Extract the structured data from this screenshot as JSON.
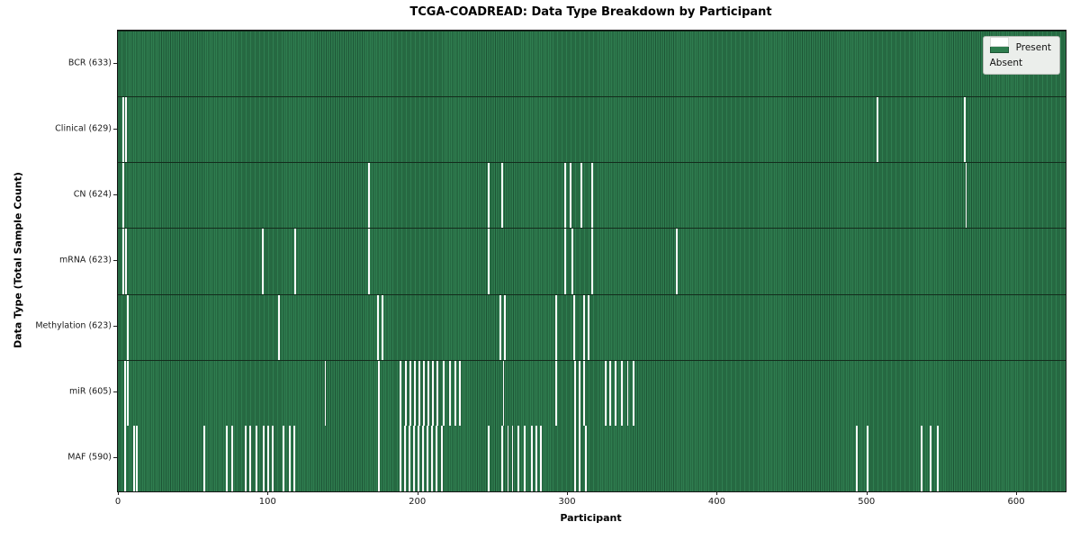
{
  "chart_data": {
    "type": "heatmap",
    "title": "TCGA-COADREAD: Data Type Breakdown by Participant",
    "xlabel": "Participant",
    "ylabel": "Data Type (Total Sample Count)",
    "x_ticks": [
      0,
      100,
      200,
      300,
      400,
      500,
      600
    ],
    "xlim": [
      0,
      633
    ],
    "n_participants": 633,
    "grid": false,
    "legend_position": "upper right",
    "legend": [
      {
        "label": "Present",
        "color": "#2e7d4e"
      },
      {
        "label": "Absent",
        "color": "#ffffff"
      }
    ],
    "colors": {
      "present": "#2e7d4e",
      "present_edge": "#1d5435",
      "absent": "#fbfbfb",
      "legend_background": "#ebeeeb"
    },
    "rows": [
      {
        "label": "BCR (633)",
        "data_type": "BCR",
        "present_count": 633,
        "absent_count": 0,
        "absent_participants": []
      },
      {
        "label": "Clinical (629)",
        "data_type": "Clinical",
        "present_count": 629,
        "absent_count": 4,
        "absent_participants": [
          3,
          5,
          507,
          565
        ]
      },
      {
        "label": "CN (624)",
        "data_type": "CN",
        "present_count": 624,
        "absent_count": 9,
        "absent_participants": [
          3,
          167,
          247,
          256,
          298,
          302,
          309,
          316,
          566
        ]
      },
      {
        "label": "mRNA (623)",
        "data_type": "mRNA",
        "present_count": 623,
        "absent_count": 10,
        "absent_participants": [
          3,
          5,
          96,
          118,
          167,
          247,
          298,
          303,
          316,
          373
        ]
      },
      {
        "label": "Methylation (623)",
        "data_type": "Methylation",
        "present_count": 623,
        "absent_count": 10,
        "absent_participants": [
          6,
          107,
          173,
          176,
          255,
          258,
          292,
          304,
          311,
          314
        ]
      },
      {
        "label": "miR (605)",
        "data_type": "miR",
        "present_count": 605,
        "absent_count": 28,
        "absent_participants": [
          4,
          6,
          138,
          174,
          188,
          192,
          195,
          198,
          201,
          204,
          207,
          210,
          213,
          217,
          221,
          225,
          228,
          257,
          292,
          305,
          308,
          311,
          325,
          328,
          332,
          336,
          340,
          344
        ]
      },
      {
        "label": "MAF (590)",
        "data_type": "MAF",
        "present_count": 590,
        "absent_count": 43,
        "absent_participants": [
          4,
          10,
          12,
          57,
          72,
          76,
          85,
          88,
          92,
          97,
          100,
          103,
          110,
          114,
          117,
          174,
          188,
          191,
          194,
          197,
          200,
          203,
          206,
          209,
          212,
          216,
          247,
          256,
          260,
          263,
          267,
          271,
          276,
          279,
          282,
          305,
          308,
          312,
          493,
          500,
          536,
          542,
          547
        ]
      }
    ]
  }
}
